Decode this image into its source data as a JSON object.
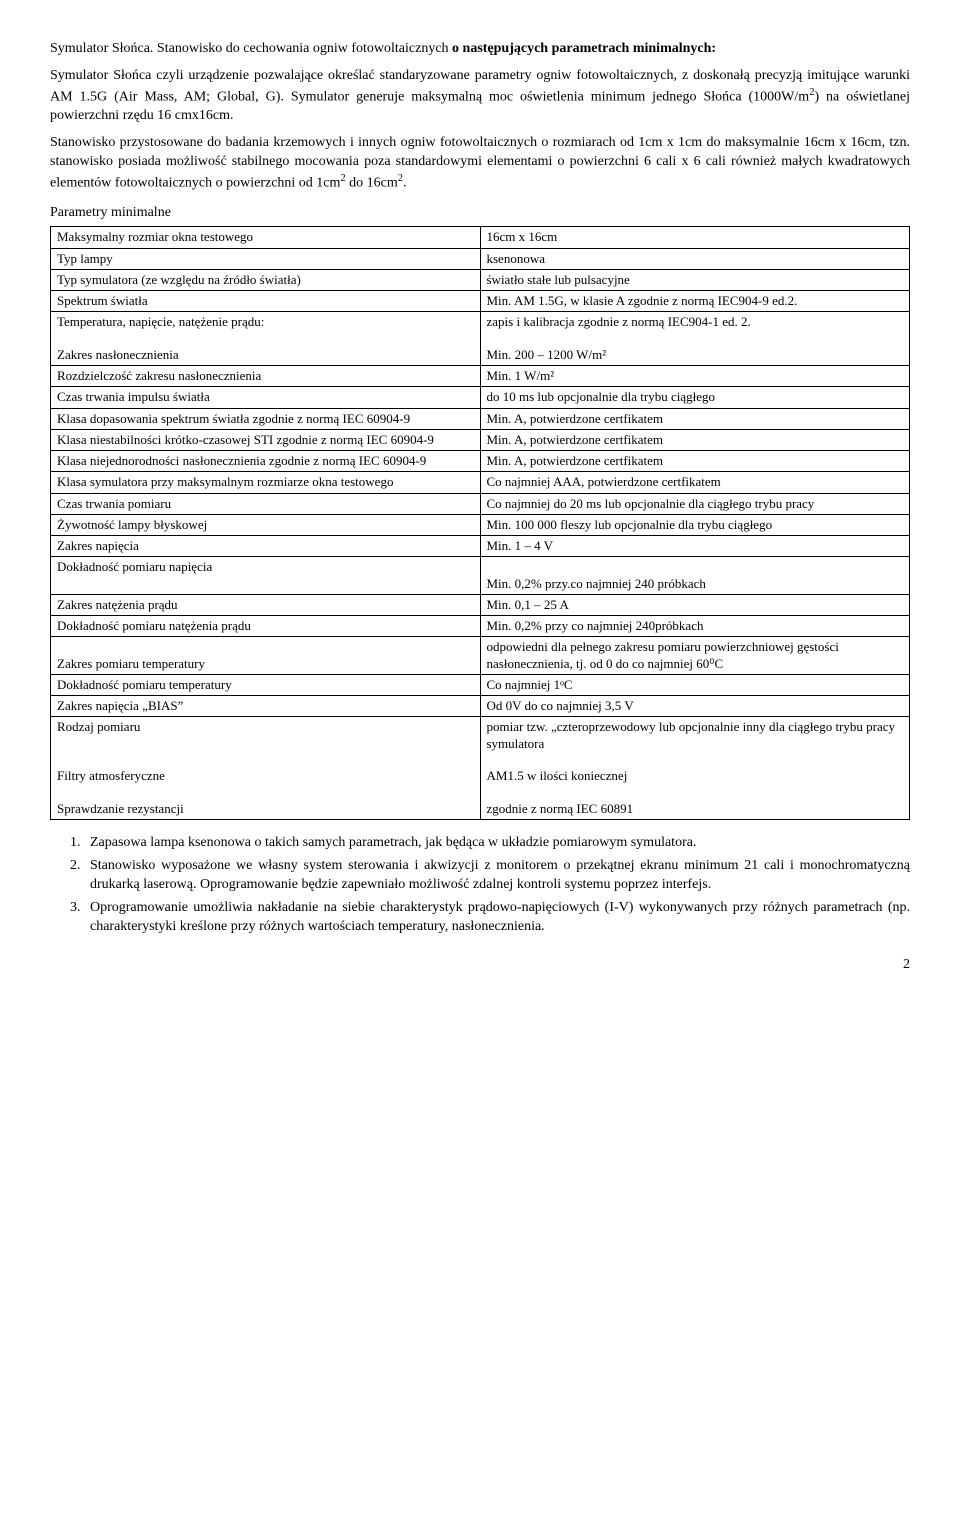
{
  "intro": {
    "p1_prefix": "Symulator Słońca. Stanowisko do cechowania ogniw fotowoltaicznych ",
    "p1_bold": "o następujących parametrach minimalnych:",
    "p2": "Symulator Słońca czyli urządzenie pozwalające określać standaryzowane parametry ogniw fotowoltaicznych, z doskonałą precyzją imitujące warunki AM 1.5G (Air Mass, AM; Global, G). Symulator generuje maksymalną moc oświetlenia minimum jednego Słońca (1000W/m",
    "p2_after_sup": ") na oświetlanej powierzchni rzędu 16 cmx16cm.",
    "p3a": "Stanowisko przystosowane do badania krzemowych i innych ogniw fotowoltaicznych o rozmiarach od 1cm x 1cm do  maksymalnie 16cm  x 16cm, tzn. stanowisko posiada możliwość stabilnego mocowania poza standardowymi elementami o powierzchni 6 cali x 6 cali również małych kwadratowych elementów fotowoltaicznych o powierzchni od 1cm",
    "p3b": " do 16cm",
    "p3c": "."
  },
  "params_heading": "Parametry minimalne",
  "table": [
    {
      "l": "Maksymalny rozmiar okna testowego",
      "r": "16cm x 16cm"
    },
    {
      "l": "Typ lampy",
      "r": "ksenonowa"
    },
    {
      "l": "Typ symulatora (ze względu na źródło światła)",
      "r": "światło stałe lub pulsacyjne"
    },
    {
      "l": "Spektrum światła",
      "r": "Min. AM 1.5G, w klasie A zgodnie z normą IEC904-9 ed.2."
    },
    {
      "l": "Temperatura, napięcie, natężenie prądu:\n\nZakres nasłonecznienia",
      "r": "zapis i kalibracja zgodnie z normą IEC904-1 ed. 2.\n\nMin. 200 – 1200 W/m²"
    },
    {
      "l": "Rozdzielczość zakresu nasłonecznienia",
      "r": "Min. 1 W/m²"
    },
    {
      "l": "Czas trwania impulsu światła",
      "r": "do 10 ms  lub opcjonalnie dla trybu  ciągłego"
    },
    {
      "l": "Klasa dopasowania spektrum światła zgodnie z normą IEC 60904-9",
      "r": "Min. A,  potwierdzone certfikatem"
    },
    {
      "l": "Klasa niestabilności krótko-czasowej STI zgodnie z normą IEC 60904-9",
      "r": "Min. A, potwierdzone certfikatem"
    },
    {
      "l": "Klasa niejednorodności nasłonecznienia zgodnie z normą IEC 60904-9",
      "r": "Min. A, potwierdzone certfikatem"
    },
    {
      "l": "Klasa symulatora przy maksymalnym rozmiarze okna testowego",
      "r": "Co najmniej AAA,  potwierdzone certfikatem"
    },
    {
      "l": "Czas trwania pomiaru",
      "r": "Co najmniej do 20 ms lub opcjonalnie dla ciągłego trybu pracy"
    },
    {
      "l": "Żywotność lampy błyskowej",
      "r": "Min. 100 000 fleszy lub opcjonalnie dla trybu ciągłego"
    },
    {
      "l": "Zakres napięcia",
      "r": "Min. 1 – 4 V"
    },
    {
      "l": "Dokładność pomiaru napięcia",
      "r": "\nMin. 0,2% przy.co najmniej 240 próbkach"
    },
    {
      "l": "Zakres natężenia prądu",
      "r": "Min. 0,1 – 25 A"
    },
    {
      "l": "Dokładność pomiaru natężenia prądu",
      "r": "Min. 0,2% przy co najmniej 240próbkach"
    },
    {
      "l": "\nZakres pomiaru temperatury",
      "r": "odpowiedni dla pełnego zakresu pomiaru powierzchniowej gęstości nasłonecznienia, tj. od  0 do co najmniej 60⁰C"
    },
    {
      "l": "Dokładność pomiaru temperatury",
      "r": "Co najmniej 1ᵒC"
    },
    {
      "l": "Zakres napięcia „BIAS”",
      "r": "Od 0V do co najmniej 3,5 V"
    },
    {
      "l": "Rodzaj pomiaru\n\n\nFiltry atmosferyczne\n\nSprawdzanie rezystancji",
      "r": "pomiar tzw. „czteroprzewodowy lub opcjonalnie inny dla ciągłego trybu pracy symulatora\n\nAM1.5 w ilości koniecznej\n\nzgodnie z normą IEC 60891"
    }
  ],
  "list": [
    "Zapasowa lampa ksenonowa o takich samych parametrach, jak będąca w układzie pomiarowym symulatora.",
    "Stanowisko wyposażone we własny system sterowania  i akwizycji z monitorem o przekątnej ekranu minimum 21 cali i monochromatyczną drukarką laserową. Oprogramowanie będzie zapewniało możliwość zdalnej kontroli systemu poprzez interfejs.",
    "Oprogramowanie umożliwia  nakładanie na siebie charakterystyk prądowo-napięciowych (I-V) wykonywanych przy różnych parametrach (np. charakterystyki  kreślone przy różnych wartościach temperatury, nasłonecznienia."
  ],
  "page_number": "2"
}
